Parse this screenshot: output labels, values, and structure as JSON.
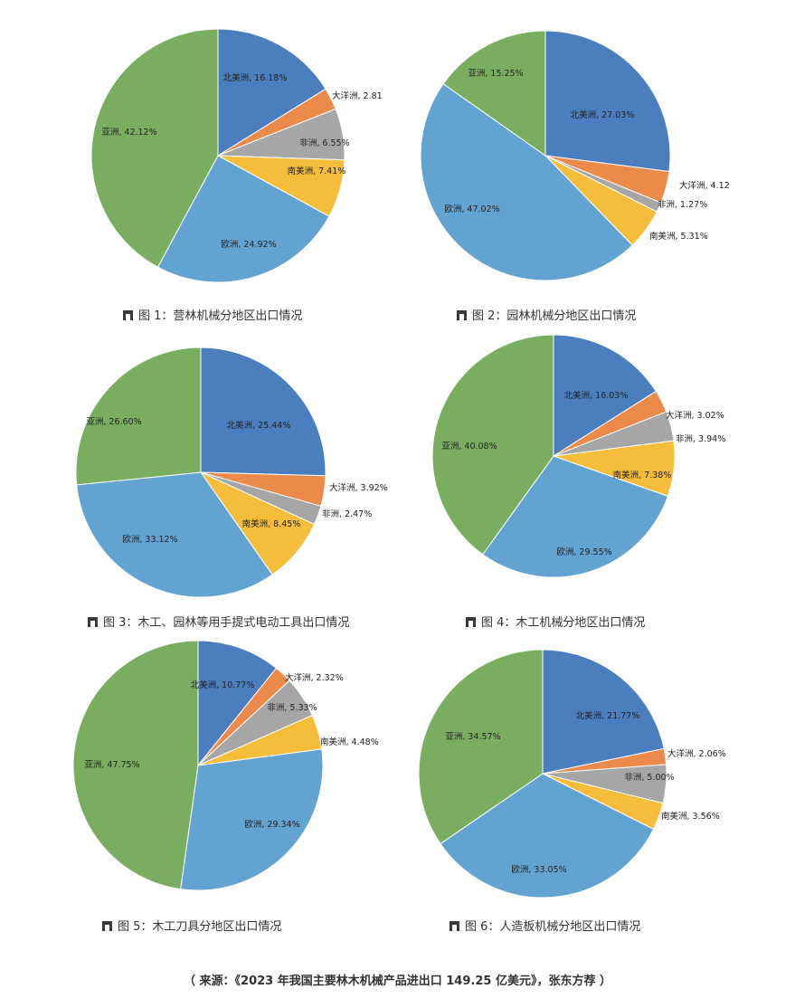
{
  "palette": {
    "北美洲": "#4a7ebf",
    "大洋洲": "#eb8a4a",
    "非洲": "#a6a6a6",
    "南美洲": "#f6bd3b",
    "欧洲": "#62a3d1",
    "亚洲": "#79ae60"
  },
  "caption_icon": "figure-icon",
  "chart_data": [
    {
      "type": "pie",
      "caption": "图 1：营林机械分地区出口情况",
      "slices": [
        {
          "name": "北美洲",
          "value": 16.18,
          "label": "北美洲, 16.18%"
        },
        {
          "name": "大洋洲",
          "value": 2.81,
          "label": "大洋洲, 2.81"
        },
        {
          "name": "非洲",
          "value": 6.55,
          "label": "非洲, 6.55%"
        },
        {
          "name": "南美洲",
          "value": 7.41,
          "label": "南美洲, 7.41%"
        },
        {
          "name": "欧洲",
          "value": 24.92,
          "label": "欧洲, 24.92%"
        },
        {
          "name": "亚洲",
          "value": 42.12,
          "label": "亚洲, 42.12%"
        }
      ]
    },
    {
      "type": "pie",
      "caption": "图 2：园林机械分地区出口情况",
      "slices": [
        {
          "name": "北美洲",
          "value": 27.03,
          "label": "北美洲, 27.03%"
        },
        {
          "name": "大洋洲",
          "value": 4.12,
          "label": "大洋洲, 4.12"
        },
        {
          "name": "非洲",
          "value": 1.27,
          "label": "非洲, 1.27%"
        },
        {
          "name": "南美洲",
          "value": 5.31,
          "label": "南美洲, 5.31%"
        },
        {
          "name": "欧洲",
          "value": 47.02,
          "label": "欧洲, 47.02%"
        },
        {
          "name": "亚洲",
          "value": 15.25,
          "label": "亚洲, 15.25%"
        }
      ]
    },
    {
      "type": "pie",
      "caption": "图 3：木工、园林等用手提式电动工具出口情况",
      "slices": [
        {
          "name": "北美洲",
          "value": 25.44,
          "label": "北美洲, 25.44%"
        },
        {
          "name": "大洋洲",
          "value": 3.92,
          "label": "大洋洲, 3.92%"
        },
        {
          "name": "非洲",
          "value": 2.47,
          "label": "非洲, 2.47%"
        },
        {
          "name": "南美洲",
          "value": 8.45,
          "label": "南美洲, 8.45%"
        },
        {
          "name": "欧洲",
          "value": 33.12,
          "label": "欧洲, 33.12%"
        },
        {
          "name": "亚洲",
          "value": 26.6,
          "label": "亚洲, 26.60%"
        }
      ]
    },
    {
      "type": "pie",
      "caption": "图 4：木工机械分地区出口情况",
      "slices": [
        {
          "name": "北美洲",
          "value": 16.03,
          "label": "北美洲, 16.03%"
        },
        {
          "name": "大洋洲",
          "value": 3.02,
          "label": "大洋洲, 3.02%"
        },
        {
          "name": "非洲",
          "value": 3.94,
          "label": "非洲, 3.94%"
        },
        {
          "name": "南美洲",
          "value": 7.38,
          "label": "南美洲, 7.38%"
        },
        {
          "name": "欧洲",
          "value": 29.55,
          "label": "欧洲, 29.55%"
        },
        {
          "name": "亚洲",
          "value": 40.08,
          "label": "亚洲, 40.08%"
        }
      ]
    },
    {
      "type": "pie",
      "caption": "图 5：木工刀具分地区出口情况",
      "slices": [
        {
          "name": "北美洲",
          "value": 10.77,
          "label": "北美洲, 10.77%"
        },
        {
          "name": "大洋洲",
          "value": 2.32,
          "label": "大洋洲, 2.32%"
        },
        {
          "name": "非洲",
          "value": 5.33,
          "label": "非洲, 5.33%"
        },
        {
          "name": "南美洲",
          "value": 4.48,
          "label": "南美洲, 4.48%"
        },
        {
          "name": "欧洲",
          "value": 29.34,
          "label": "欧洲, 29.34%"
        },
        {
          "name": "亚洲",
          "value": 47.75,
          "label": "亚洲, 47.75%"
        }
      ]
    },
    {
      "type": "pie",
      "caption": "图 6：人造板机械分地区出口情况",
      "slices": [
        {
          "name": "北美洲",
          "value": 21.77,
          "label": "北美洲, 21.77%"
        },
        {
          "name": "大洋洲",
          "value": 2.06,
          "label": "大洋洲, 2.06%"
        },
        {
          "name": "非洲",
          "value": 5.0,
          "label": "非洲, 5.00%"
        },
        {
          "name": "南美洲",
          "value": 3.56,
          "label": "南美洲, 3.56%"
        },
        {
          "name": "欧洲",
          "value": 33.05,
          "label": "欧洲, 33.05%"
        },
        {
          "name": "亚洲",
          "value": 34.57,
          "label": "亚洲, 34.57%"
        }
      ]
    }
  ],
  "source": "（ 来源：《2023 年我国主要林木机械产品进出口 149.25 亿美元》，张东方荐 ）"
}
